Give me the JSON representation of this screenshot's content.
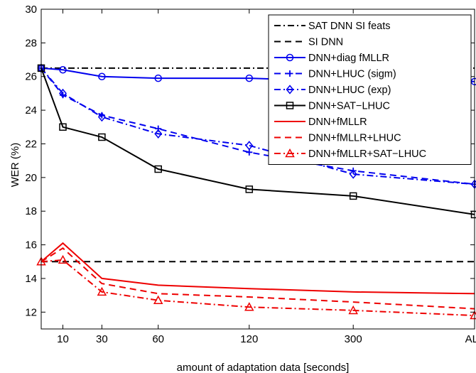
{
  "chart_data": {
    "type": "line",
    "title": "",
    "xlabel": "amount of adaptation data [seconds]",
    "ylabel": "WER (%)",
    "xlim": [
      0,
      100
    ],
    "ylim": [
      11,
      30
    ],
    "x_ticks": [
      {
        "label": "10",
        "pos": 5
      },
      {
        "label": "30",
        "pos": 14
      },
      {
        "label": "60",
        "pos": 27
      },
      {
        "label": "120",
        "pos": 48
      },
      {
        "label": "300",
        "pos": 72
      },
      {
        "label": "ALL",
        "pos": 100
      }
    ],
    "y_ticks": [
      12,
      14,
      16,
      18,
      20,
      22,
      24,
      26,
      28,
      30
    ],
    "grid": false,
    "legend_position": "top-right",
    "x": [
      0,
      5,
      14,
      27,
      48,
      72,
      100
    ],
    "x_labels": [
      "",
      "10",
      "30",
      "60",
      "120",
      "300",
      "ALL"
    ],
    "series": [
      {
        "name": "SAT DNN SI feats",
        "color": "#000000",
        "dash": "dashdot",
        "marker": "none",
        "values": [
          26.5,
          26.5,
          26.5,
          26.5,
          26.5,
          26.5,
          26.5
        ]
      },
      {
        "name": "SI DNN",
        "color": "#000000",
        "dash": "dashed",
        "marker": "none",
        "values": [
          15.0,
          15.0,
          15.0,
          15.0,
          15.0,
          15.0,
          15.0
        ]
      },
      {
        "name": "DNN+diag fMLLR",
        "color": "#0000ee",
        "dash": "solid",
        "marker": "circle",
        "values": [
          26.5,
          26.4,
          26.0,
          25.9,
          25.9,
          25.7,
          25.7
        ]
      },
      {
        "name": "DNN+LHUC (sigm)",
        "color": "#0000ee",
        "dash": "dashed",
        "marker": "plus",
        "values": [
          26.5,
          24.9,
          23.7,
          22.9,
          21.5,
          20.4,
          19.6
        ]
      },
      {
        "name": "DNN+LHUC (exp)",
        "color": "#0000ee",
        "dash": "dashdot",
        "marker": "diamond",
        "values": [
          26.5,
          25.0,
          23.6,
          22.6,
          21.9,
          20.2,
          19.6
        ]
      },
      {
        "name": "DNN+SAT−LHUC",
        "color": "#000000",
        "dash": "solid",
        "marker": "square",
        "values": [
          26.5,
          23.0,
          22.4,
          20.5,
          19.3,
          18.9,
          17.8
        ]
      },
      {
        "name": "DNN+fMLLR",
        "color": "#ee0000",
        "dash": "solid",
        "marker": "none",
        "values": [
          15.0,
          16.1,
          14.0,
          13.6,
          13.4,
          13.2,
          13.1
        ]
      },
      {
        "name": "DNN+fMLLR+LHUC",
        "color": "#ee0000",
        "dash": "dashed",
        "marker": "none",
        "values": [
          15.0,
          15.8,
          13.7,
          13.1,
          12.9,
          12.6,
          12.2
        ]
      },
      {
        "name": "DNN+fMLLR+SAT−LHUC",
        "color": "#ee0000",
        "dash": "dashdot",
        "marker": "triangle",
        "values": [
          15.0,
          15.1,
          13.2,
          12.7,
          12.3,
          12.1,
          11.8
        ]
      }
    ]
  }
}
